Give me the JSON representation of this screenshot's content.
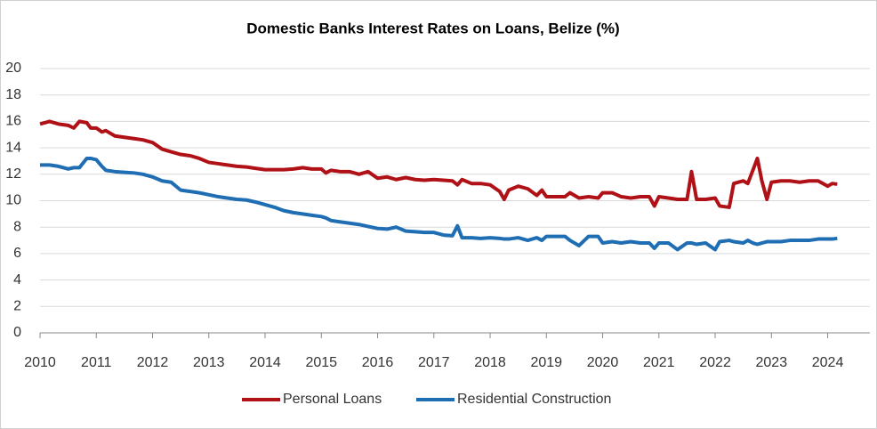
{
  "chart_data": {
    "type": "line",
    "title": "Domestic Banks Interest Rates on Loans, Belize (%)",
    "x": [
      2010,
      2010.17,
      2010.33,
      2010.5,
      2010.6,
      2010.7,
      2010.83,
      2010.9,
      2011,
      2011.1,
      2011.17,
      2011.33,
      2011.5,
      2011.67,
      2011.83,
      2012,
      2012.17,
      2012.33,
      2012.5,
      2012.67,
      2012.83,
      2013,
      2013.17,
      2013.33,
      2013.5,
      2013.67,
      2013.83,
      2014,
      2014.17,
      2014.33,
      2014.5,
      2014.67,
      2014.83,
      2015,
      2015.08,
      2015.17,
      2015.33,
      2015.5,
      2015.67,
      2015.83,
      2016,
      2016.17,
      2016.33,
      2016.5,
      2016.67,
      2016.83,
      2017,
      2017.17,
      2017.33,
      2017.42,
      2017.5,
      2017.67,
      2017.83,
      2018,
      2018.17,
      2018.25,
      2018.33,
      2018.5,
      2018.67,
      2018.83,
      2018.92,
      2019,
      2019.17,
      2019.33,
      2019.42,
      2019.58,
      2019.75,
      2019.92,
      2020,
      2020.17,
      2020.33,
      2020.5,
      2020.67,
      2020.83,
      2020.92,
      2021,
      2021.17,
      2021.33,
      2021.5,
      2021.58,
      2021.67,
      2021.83,
      2022,
      2022.08,
      2022.25,
      2022.33,
      2022.5,
      2022.58,
      2022.67,
      2022.75,
      2022.83,
      2022.92,
      2023,
      2023.17,
      2023.33,
      2023.5,
      2023.67,
      2023.83,
      2024,
      2024.08,
      2024.17
    ],
    "series": [
      {
        "name": "Personal Loans",
        "color": "#b01116",
        "values": [
          15.8,
          16.0,
          15.8,
          15.7,
          15.5,
          16.0,
          15.9,
          15.5,
          15.5,
          15.2,
          15.3,
          14.9,
          14.8,
          14.7,
          14.6,
          14.4,
          13.9,
          13.7,
          13.5,
          13.4,
          13.2,
          12.9,
          12.8,
          12.7,
          12.6,
          12.55,
          12.45,
          12.35,
          12.35,
          12.35,
          12.4,
          12.5,
          12.4,
          12.4,
          12.1,
          12.3,
          12.2,
          12.2,
          12.0,
          12.2,
          11.7,
          11.8,
          11.6,
          11.75,
          11.6,
          11.55,
          11.6,
          11.55,
          11.5,
          11.2,
          11.6,
          11.3,
          11.3,
          11.2,
          10.7,
          10.1,
          10.8,
          11.1,
          10.9,
          10.4,
          10.8,
          10.3,
          10.3,
          10.3,
          10.6,
          10.2,
          10.3,
          10.2,
          10.6,
          10.6,
          10.3,
          10.2,
          10.3,
          10.3,
          9.6,
          10.3,
          10.2,
          10.1,
          10.1,
          12.2,
          10.1,
          10.1,
          10.2,
          9.6,
          9.5,
          11.3,
          11.5,
          11.3,
          12.3,
          13.2,
          11.5,
          10.1,
          11.4,
          11.5,
          11.5,
          11.4,
          11.5,
          11.5,
          11.1,
          11.3,
          11.25
        ]
      },
      {
        "name": "Residential Construction",
        "color": "#1f6db3",
        "values": [
          12.7,
          12.7,
          12.6,
          12.4,
          12.5,
          12.5,
          13.2,
          13.2,
          13.1,
          12.6,
          12.3,
          12.2,
          12.15,
          12.1,
          12.0,
          11.8,
          11.5,
          11.4,
          10.8,
          10.7,
          10.6,
          10.45,
          10.3,
          10.2,
          10.1,
          10.05,
          9.9,
          9.7,
          9.5,
          9.25,
          9.1,
          9.0,
          8.9,
          8.8,
          8.7,
          8.5,
          8.4,
          8.3,
          8.2,
          8.05,
          7.9,
          7.85,
          8.0,
          7.7,
          7.65,
          7.6,
          7.6,
          7.4,
          7.35,
          8.1,
          7.2,
          7.2,
          7.15,
          7.2,
          7.15,
          7.1,
          7.1,
          7.2,
          7.0,
          7.2,
          7.0,
          7.3,
          7.3,
          7.3,
          7.0,
          6.6,
          7.3,
          7.3,
          6.8,
          6.9,
          6.8,
          6.9,
          6.8,
          6.8,
          6.4,
          6.8,
          6.8,
          6.3,
          6.8,
          6.8,
          6.7,
          6.8,
          6.3,
          6.9,
          7.0,
          6.9,
          6.8,
          7.0,
          6.8,
          6.7,
          6.8,
          6.9,
          6.9,
          6.9,
          7.0,
          7.0,
          7.0,
          7.1,
          7.1,
          7.1,
          7.15
        ]
      }
    ],
    "xlim": [
      2010,
      2024.75
    ],
    "xticks": [
      2010,
      2011,
      2012,
      2013,
      2014,
      2015,
      2016,
      2017,
      2018,
      2019,
      2020,
      2021,
      2022,
      2023,
      2024
    ],
    "ylim": [
      0,
      20
    ],
    "yticks": [
      0,
      2,
      4,
      6,
      8,
      10,
      12,
      14,
      16,
      18,
      20
    ],
    "grid": true,
    "legend": "bottom"
  }
}
